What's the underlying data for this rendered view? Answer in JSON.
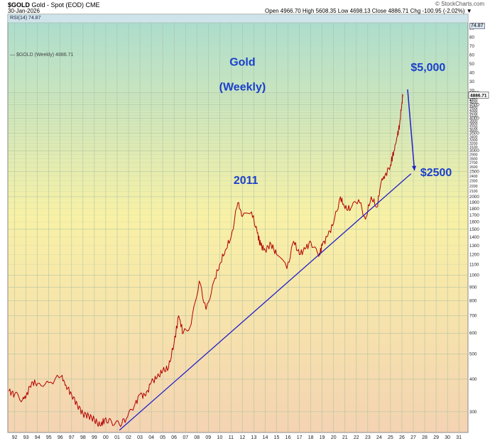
{
  "header": {
    "symbol": "$GOLD",
    "description": "Gold - Spot (EOD) CME",
    "date": "30-Jan-2026",
    "quote": "Open 4966.70  High 5608.35  Low 4698.13  Close 4886.71  Chg -100.95 (-2.02%) ▼",
    "brand": "© StockCharts.com"
  },
  "colors": {
    "price": "#b30000",
    "trendline": "#2020cc",
    "annotation": "#1a3fcc",
    "grid": "#a8bfa0"
  },
  "chart_data": {
    "type": "line",
    "legend": "— $GOLD (Weekly) 4886.71",
    "rsi_label": "RSI(14) 74.87",
    "rsi_value": "74.87",
    "last_value_tag": "4886.71",
    "y_scale": "log",
    "x_range": [
      1991.4,
      2031.8
    ],
    "y_range": [
      250,
      10000
    ],
    "x_tick_labels": [
      "92",
      "93",
      "94",
      "95",
      "96",
      "97",
      "98",
      "99",
      "00",
      "01",
      "02",
      "03",
      "04",
      "05",
      "06",
      "07",
      "08",
      "09",
      "10",
      "11",
      "12",
      "13",
      "14",
      "15",
      "16",
      "17",
      "18",
      "19",
      "20",
      "21",
      "22",
      "23",
      "24",
      "25",
      "26",
      "27",
      "28",
      "29",
      "30",
      "31"
    ],
    "y_tick_labels_right": [
      "90",
      "80",
      "70",
      "60",
      "50",
      "40",
      "30",
      "20",
      "10",
      "5000",
      "4900",
      "4800",
      "4700",
      "4600",
      "4500",
      "4400",
      "4300",
      "4200",
      "4100",
      "4000",
      "3900",
      "3800",
      "3700",
      "3600",
      "3500",
      "3400",
      "3300",
      "3200",
      "3100",
      "3000",
      "2900",
      "2800",
      "2700",
      "2600",
      "2500",
      "2400",
      "2300",
      "2200",
      "2100",
      "2000",
      "1900",
      "1800",
      "1700",
      "1600",
      "1500",
      "1400",
      "1300",
      "1200",
      "1100",
      "1000",
      "900",
      "800",
      "700",
      "600",
      "500",
      "400",
      "300"
    ],
    "series": [
      {
        "name": "$GOLD (Weekly)",
        "x": [
          1991.5,
          1992.0,
          1992.7,
          1993.0,
          1993.5,
          1994.0,
          1995.0,
          1996.1,
          1996.5,
          1997.0,
          1997.5,
          1998.0,
          1998.5,
          1999.0,
          1999.5,
          1999.9,
          2000.5,
          2001.2,
          2001.8,
          2002.5,
          2003.0,
          2003.5,
          2004.0,
          2004.5,
          2005.0,
          2005.5,
          2006.0,
          2006.4,
          2006.8,
          2007.5,
          2008.2,
          2008.8,
          2009.5,
          2010.0,
          2010.5,
          2011.0,
          2011.6,
          2012.0,
          2012.8,
          2013.3,
          2013.6,
          2014.0,
          2014.5,
          2015.0,
          2015.9,
          2016.5,
          2017.0,
          2017.5,
          2018.0,
          2018.7,
          2019.0,
          2019.5,
          2020.0,
          2020.6,
          2021.0,
          2021.5,
          2022.2,
          2022.8,
          2023.3,
          2023.8,
          2024.2,
          2024.5,
          2025.0,
          2025.3,
          2025.6,
          2025.8,
          2026.0,
          2026.08
        ],
        "y": [
          360,
          350,
          335,
          345,
          390,
          385,
          388,
          410,
          380,
          350,
          320,
          295,
          290,
          280,
          265,
          280,
          275,
          268,
          282,
          315,
          350,
          345,
          390,
          405,
          430,
          440,
          550,
          700,
          600,
          650,
          950,
          740,
          950,
          1100,
          1250,
          1400,
          1900,
          1680,
          1750,
          1450,
          1300,
          1250,
          1320,
          1200,
          1060,
          1350,
          1200,
          1260,
          1340,
          1180,
          1300,
          1420,
          1580,
          2000,
          1800,
          1800,
          1950,
          1640,
          2000,
          1820,
          2300,
          2400,
          2650,
          3000,
          3400,
          3800,
          4600,
          4886.71
        ]
      },
      {
        "name": "trendline",
        "x": [
          2001.2,
          2026.8
        ],
        "y": [
          255,
          2450
        ]
      }
    ],
    "annotations": [
      {
        "text": "Gold",
        "x": 2012.0,
        "y": 6350
      },
      {
        "text": "(Weekly)",
        "x": 2012.0,
        "y": 5100
      },
      {
        "text": "$5,000",
        "x": 2028.3,
        "y": 6050
      },
      {
        "text": "2011",
        "x": 2012.3,
        "y": 2240
      },
      {
        "text": "$2500",
        "x": 2029.0,
        "y": 2400
      }
    ],
    "arrow": {
      "x": [
        2026.5,
        2027.1
      ],
      "y": [
        5150,
        2520
      ]
    }
  }
}
